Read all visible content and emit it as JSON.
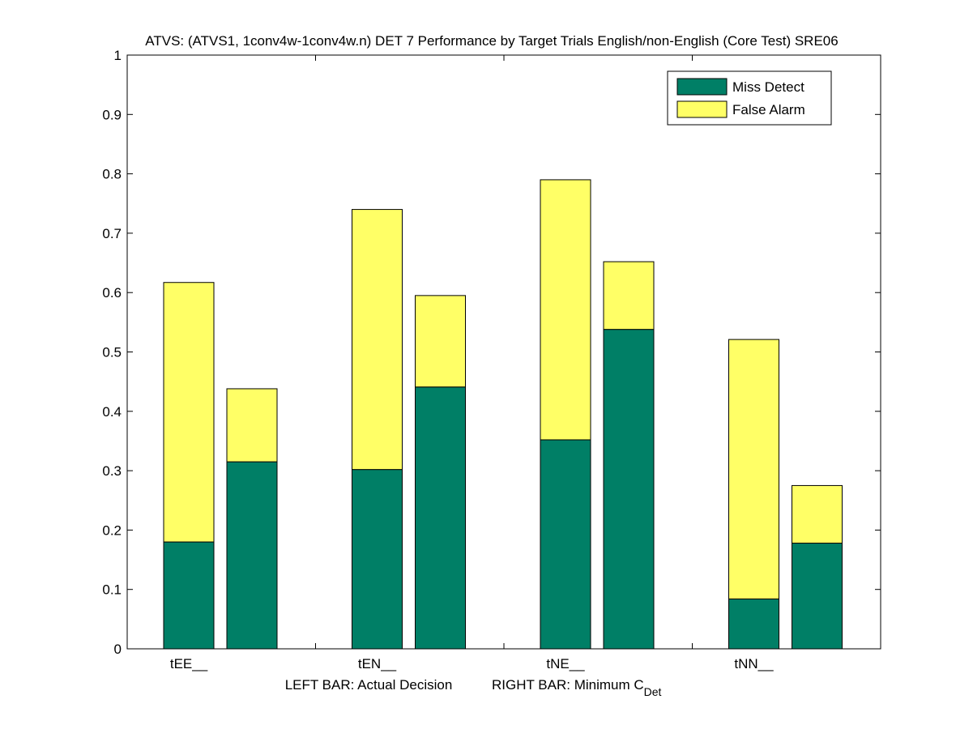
{
  "chart_data": {
    "type": "bar",
    "stacked": true,
    "title": "ATVS: (ATVS1, 1conv4w-1conv4w.n) DET 7 Performance by Target Trials English/non-English (Core Test) SRE06",
    "categories": [
      "tEE__",
      "tEN__",
      "tNE__",
      "tNN__"
    ],
    "xlabel_left": "LEFT BAR: Actual Decision",
    "xlabel_right_prefix": "RIGHT BAR: Minimum C",
    "xlabel_right_subscript": "Det",
    "ylim": [
      0,
      1
    ],
    "yticks": [
      "0",
      "0.1",
      "0.2",
      "0.3",
      "0.4",
      "0.5",
      "0.6",
      "0.7",
      "0.8",
      "0.9",
      "1"
    ],
    "grid": false,
    "legend_position": "top-right",
    "series": [
      {
        "name": "Miss Detect",
        "color": "#007f66",
        "actual": [
          0.18,
          0.302,
          0.352,
          0.084
        ],
        "minimum": [
          0.315,
          0.441,
          0.538,
          0.178
        ]
      },
      {
        "name": "False Alarm",
        "color": "#ffff66",
        "actual": [
          0.437,
          0.438,
          0.438,
          0.437
        ],
        "minimum": [
          0.123,
          0.154,
          0.114,
          0.097
        ]
      }
    ]
  }
}
